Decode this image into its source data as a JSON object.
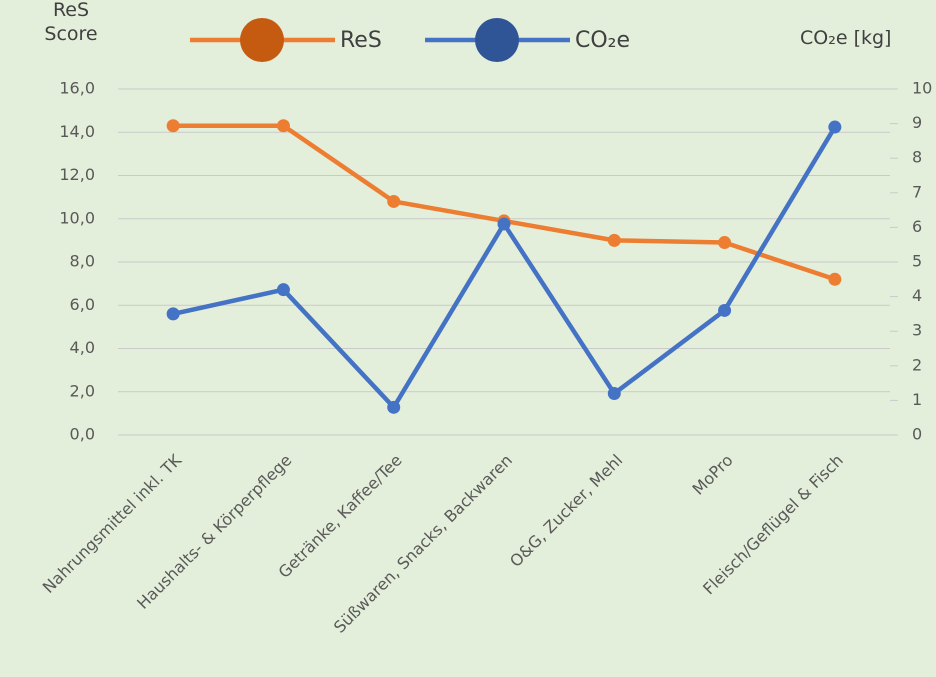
{
  "chart_data": {
    "type": "line",
    "y_label": "ReS Score",
    "y2_label": "CO₂e [kg]",
    "categories": [
      "Nahrungsmittel inkl. TK",
      "Haushalts- & Körperpflege",
      "Getränke, Kaffee/Tee",
      "Süßwaren, Snacks, Backwaren",
      "O&G, Zucker, Mehl",
      "MoPro",
      "Fleisch/Geflügel & Fisch"
    ],
    "series": [
      {
        "name": "ReS",
        "color": "#ed7d31",
        "legend_color": "#c55a11",
        "axis": "y",
        "values": [
          14.3,
          14.3,
          10.8,
          9.9,
          9.0,
          8.9,
          7.2
        ]
      },
      {
        "name": "CO₂e",
        "color": "#4472c4",
        "legend_color": "#2f5597",
        "axis": "y2",
        "values": [
          3.5,
          4.2,
          0.8,
          6.1,
          1.2,
          3.6,
          8.9
        ]
      }
    ],
    "ylim": [
      0,
      16
    ],
    "yticks": [
      {
        "value": 0,
        "label": "0,0"
      },
      {
        "value": 2,
        "label": "2,0"
      },
      {
        "value": 4,
        "label": "4,0"
      },
      {
        "value": 6,
        "label": "6,0"
      },
      {
        "value": 8,
        "label": "8,0"
      },
      {
        "value": 10,
        "label": "10,0"
      },
      {
        "value": 12,
        "label": "12,0"
      },
      {
        "value": 14,
        "label": "14,0"
      },
      {
        "value": 16,
        "label": "16,0"
      }
    ],
    "y2lim": [
      0,
      10
    ],
    "y2ticks": [
      0,
      1,
      2,
      3,
      4,
      5,
      6,
      7,
      8,
      9,
      10
    ],
    "grid": true,
    "legend": "top"
  }
}
